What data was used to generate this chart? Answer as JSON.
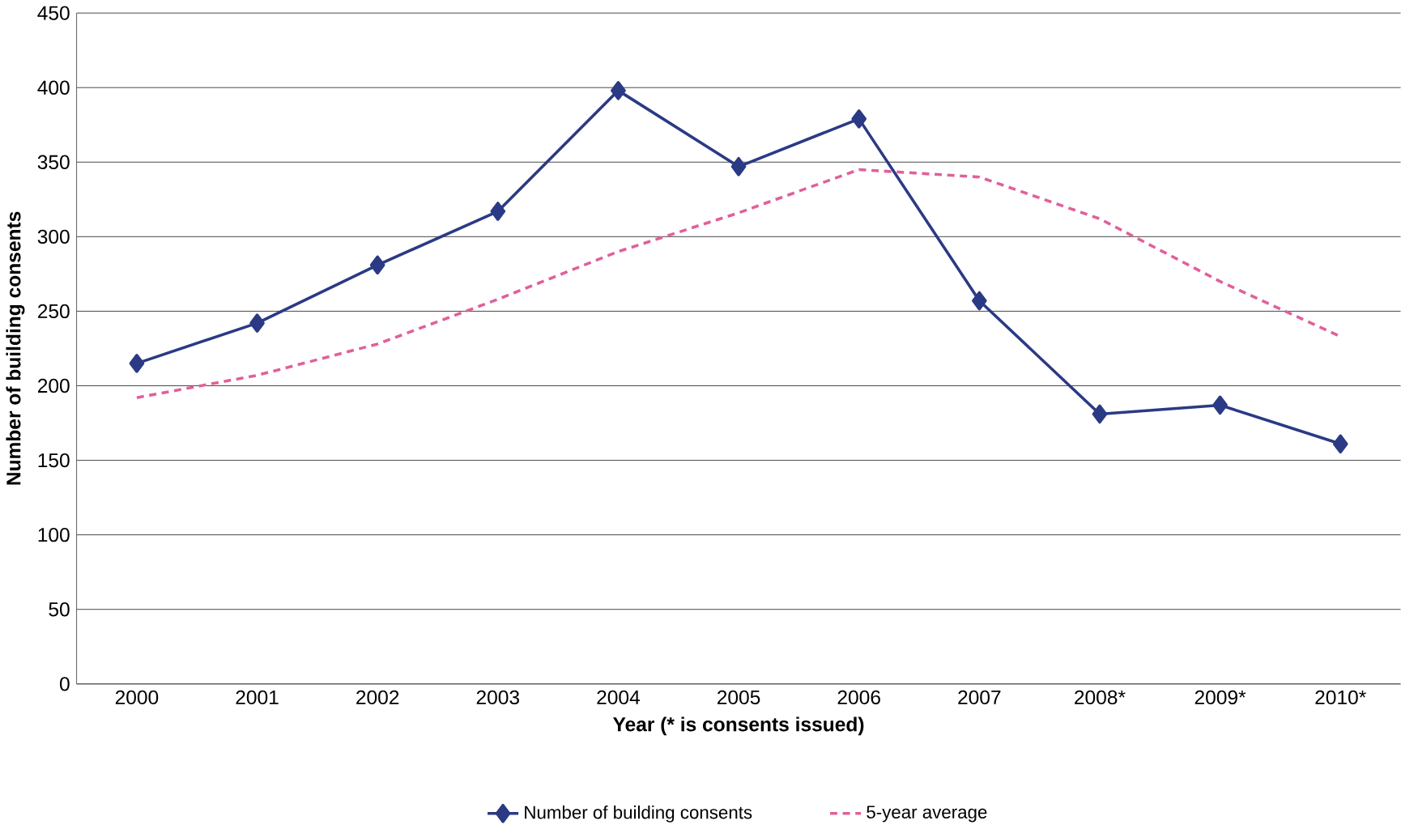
{
  "chart_data": {
    "type": "line",
    "xlabel": "Year (* is consents issued)",
    "ylabel": "Number of building consents",
    "categories": [
      "2000",
      "2001",
      "2002",
      "2003",
      "2004",
      "2005",
      "2006",
      "2007",
      "2008*",
      "2009*",
      "2010*"
    ],
    "series": [
      {
        "name": "Number of building consents",
        "color": "#2b3a85",
        "marker": "diamond",
        "line_style": "solid",
        "values": [
          215,
          242,
          281,
          317,
          398,
          347,
          379,
          257,
          181,
          187,
          161
        ]
      },
      {
        "name": "5-year average",
        "color": "#e0609a",
        "marker": "none",
        "line_style": "dashed",
        "values": [
          192,
          207,
          228,
          258,
          290,
          316,
          345,
          340,
          312,
          270,
          233
        ]
      }
    ],
    "ylim": [
      0,
      450
    ],
    "yticks": [
      0,
      50,
      100,
      150,
      200,
      250,
      300,
      350,
      400,
      450
    ],
    "grid": "y",
    "legend": "bottom"
  }
}
